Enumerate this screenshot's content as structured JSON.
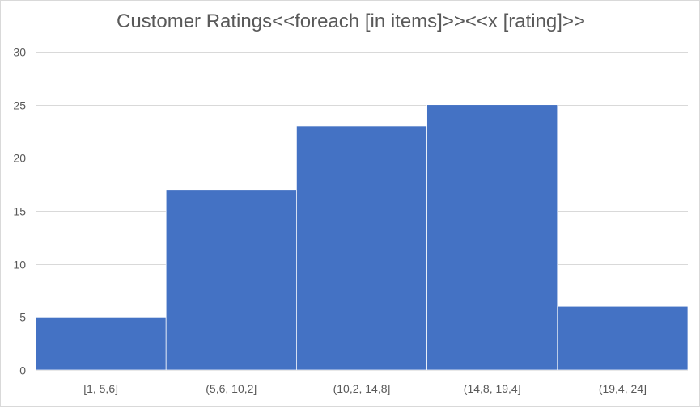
{
  "chart_data": {
    "type": "bar",
    "title": "Customer Ratings<<foreach [in items]>><<x [rating]>>",
    "xlabel": "",
    "ylabel": "",
    "categories": [
      "[1, 5,6]",
      "(5,6, 10,2]",
      "(10,2, 14,8]",
      "(14,8, 19,4]",
      "(19,4, 24]"
    ],
    "values": [
      5,
      17,
      23,
      25,
      6
    ],
    "ylim": [
      0,
      30
    ],
    "yticks": [
      0,
      5,
      10,
      15,
      20,
      25,
      30
    ],
    "grid": true,
    "legend": "none",
    "bar_color": "#4472c4",
    "gridline_color": "#d9d9d9",
    "text_color": "#595959"
  }
}
